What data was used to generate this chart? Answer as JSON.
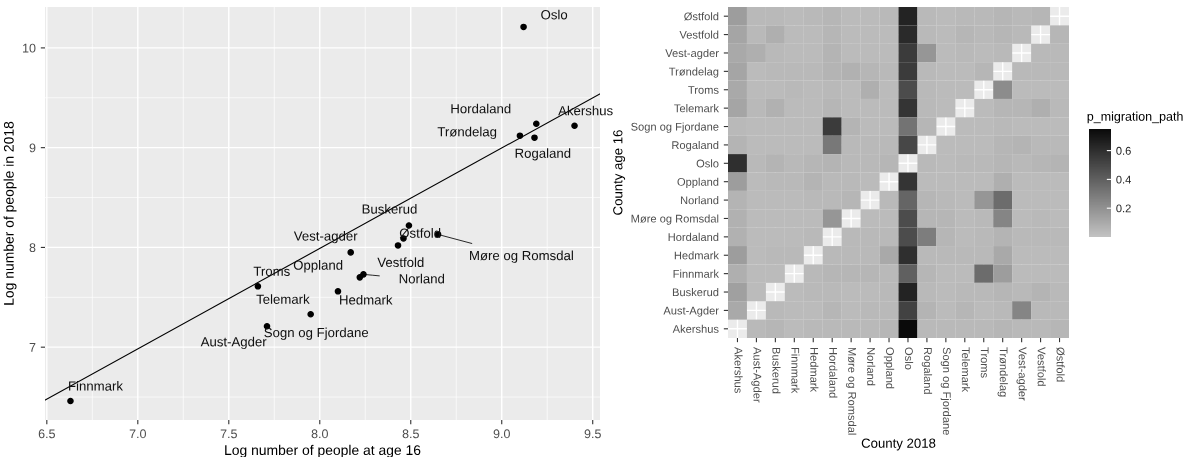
{
  "chart_data": [
    {
      "type": "scatter",
      "xlabel": "Log number of people at age 16",
      "ylabel": "Log number of people in 2018",
      "xlim": [
        6.49,
        9.54
      ],
      "ylim": [
        6.27,
        10.41
      ],
      "xticks": [
        {
          "value": 6.5,
          "label": "6.5"
        },
        {
          "value": 7.0,
          "label": "7.0"
        },
        {
          "value": 7.5,
          "label": "7.5"
        },
        {
          "value": 8.0,
          "label": "8.0"
        },
        {
          "value": 8.5,
          "label": "8.5"
        },
        {
          "value": 9.0,
          "label": "9.0"
        },
        {
          "value": 9.5,
          "label": "9.5"
        }
      ],
      "yticks": [
        7,
        8,
        9,
        10
      ],
      "grid": true,
      "series": [
        {
          "type": "scatter",
          "marker": "circle",
          "color": "#000000",
          "x": [
            9.12,
            9.4,
            9.19,
            9.1,
            9.18,
            8.49,
            8.46,
            8.43,
            8.65,
            8.17,
            8.22,
            8.24,
            8.1,
            7.66,
            7.95,
            7.71,
            6.63
          ],
          "values": [
            10.21,
            9.22,
            9.24,
            9.12,
            9.1,
            8.22,
            8.09,
            8.02,
            8.13,
            7.95,
            7.7,
            7.73,
            7.56,
            7.61,
            7.33,
            7.21,
            6.46
          ]
        },
        {
          "type": "line",
          "color": "#000000",
          "x": [
            6.49,
            9.54
          ],
          "values": [
            6.47,
            9.54
          ]
        }
      ],
      "annotations": [
        {
          "text": "Oslo",
          "x": 9.12,
          "y": 10.21
        },
        {
          "text": "Akershus",
          "x": 9.4,
          "y": 9.22
        },
        {
          "text": "Hordaland",
          "x": 9.19,
          "y": 9.24
        },
        {
          "text": "Trøndelag",
          "x": 9.1,
          "y": 9.12
        },
        {
          "text": "Rogaland",
          "x": 9.18,
          "y": 9.1
        },
        {
          "text": "Buskerud",
          "x": 8.49,
          "y": 8.22
        },
        {
          "text": "Østfold",
          "x": 8.46,
          "y": 8.09
        },
        {
          "text": "Vestfold",
          "x": 8.43,
          "y": 8.02
        },
        {
          "text": "Møre og Romsdal",
          "x": 8.65,
          "y": 8.13
        },
        {
          "text": "Vest-agder",
          "x": 8.17,
          "y": 7.95
        },
        {
          "text": "Oppland",
          "x": 8.22,
          "y": 7.7
        },
        {
          "text": "Norland",
          "x": 8.24,
          "y": 7.73
        },
        {
          "text": "Hedmark",
          "x": 8.1,
          "y": 7.56
        },
        {
          "text": "Troms",
          "x": 7.66,
          "y": 7.61
        },
        {
          "text": "Telemark",
          "x": 7.95,
          "y": 7.33
        },
        {
          "text": "Sogn og Fjordane",
          "x": 7.95,
          "y": 7.33
        },
        {
          "text": "Aust-Agder",
          "x": 7.71,
          "y": 7.21
        },
        {
          "text": "Finnmark",
          "x": 6.63,
          "y": 6.46
        }
      ]
    },
    {
      "type": "heatmap",
      "xlabel": "County 2018",
      "ylabel": "County age 16",
      "clabel": "p_migration_path",
      "categories": [
        "Akershus",
        "Aust-Agder",
        "Buskerud",
        "Finnmark",
        "Hedmark",
        "Hordaland",
        "Møre og Romsdal",
        "Norland",
        "Oppland",
        "Oslo",
        "Rogaland",
        "Sogn og Fjordane",
        "Telemark",
        "Troms",
        "Trøndelag",
        "Vest-agder",
        "Vestfold",
        "Østfold"
      ],
      "y_categories": [
        "Østfold",
        "Vestfold",
        "Vest-agder",
        "Trøndelag",
        "Troms",
        "Telemark",
        "Sogn og Fjordane",
        "Rogaland",
        "Oslo",
        "Oppland",
        "Norland",
        "Møre og Romsdal",
        "Hordaland",
        "Hedmark",
        "Finnmark",
        "Buskerud",
        "Aust-Agder",
        "Akershus"
      ],
      "clim": [
        0,
        0.75
      ],
      "cticks": [
        0.2,
        0.4,
        0.6
      ],
      "colors": [
        "#c2c2c2",
        "#0a0a0a"
      ],
      "grid": true,
      "cells": [
        [
          0.15,
          0.04,
          0.04,
          0.03,
          0.04,
          0.05,
          0.03,
          0.03,
          0.04,
          0.65,
          0.04,
          0.03,
          0.04,
          0.04,
          0.05,
          0.04,
          0.05,
          null
        ],
        [
          0.12,
          0.04,
          0.08,
          0.03,
          0.03,
          0.05,
          0.03,
          0.03,
          0.03,
          0.62,
          0.04,
          0.03,
          0.05,
          0.04,
          0.05,
          0.04,
          null,
          0.05
        ],
        [
          0.1,
          0.08,
          0.04,
          0.03,
          0.03,
          0.06,
          0.03,
          0.03,
          0.03,
          0.55,
          0.18,
          0.03,
          0.04,
          0.03,
          0.04,
          null,
          0.04,
          0.04
        ],
        [
          0.12,
          0.03,
          0.04,
          0.04,
          0.04,
          0.06,
          0.07,
          0.05,
          0.04,
          0.55,
          0.04,
          0.03,
          0.03,
          0.05,
          null,
          0.04,
          0.04,
          0.04
        ],
        [
          0.1,
          0.03,
          0.03,
          0.04,
          0.03,
          0.04,
          0.03,
          0.08,
          0.03,
          0.48,
          0.04,
          0.03,
          0.03,
          null,
          0.22,
          0.03,
          0.03,
          0.03
        ],
        [
          0.12,
          0.04,
          0.07,
          0.03,
          0.03,
          0.05,
          0.03,
          0.03,
          0.03,
          0.58,
          0.04,
          0.03,
          null,
          0.03,
          0.05,
          0.05,
          0.08,
          0.04
        ],
        [
          0.04,
          0.03,
          0.03,
          0.03,
          0.03,
          0.55,
          0.06,
          0.03,
          0.03,
          0.32,
          0.05,
          null,
          0.03,
          0.03,
          0.04,
          0.03,
          0.03,
          0.03
        ],
        [
          0.06,
          0.03,
          0.03,
          0.03,
          0.03,
          0.3,
          0.04,
          0.04,
          0.04,
          0.5,
          null,
          0.03,
          0.03,
          0.03,
          0.05,
          0.06,
          0.04,
          0.04
        ],
        [
          0.6,
          0.04,
          0.06,
          0.04,
          0.05,
          0.06,
          0.04,
          0.04,
          0.05,
          null,
          0.04,
          0.03,
          0.04,
          0.04,
          0.05,
          0.04,
          0.05,
          0.06
        ],
        [
          0.15,
          0.03,
          0.04,
          0.04,
          0.06,
          0.04,
          0.04,
          0.03,
          null,
          0.58,
          0.03,
          0.03,
          0.03,
          0.03,
          0.08,
          0.03,
          0.03,
          0.03
        ],
        [
          0.06,
          0.03,
          0.03,
          0.03,
          0.04,
          0.04,
          0.05,
          null,
          0.04,
          0.38,
          0.05,
          0.04,
          0.03,
          0.18,
          0.35,
          0.03,
          0.03,
          0.03
        ],
        [
          0.07,
          0.03,
          0.03,
          0.03,
          0.03,
          0.18,
          null,
          0.03,
          0.03,
          0.48,
          0.05,
          0.05,
          0.03,
          0.04,
          0.25,
          0.03,
          0.04,
          0.03
        ],
        [
          0.07,
          0.03,
          0.03,
          0.03,
          0.04,
          null,
          0.04,
          0.04,
          0.04,
          0.48,
          0.28,
          0.05,
          0.03,
          0.04,
          0.06,
          0.04,
          0.04,
          0.04
        ],
        [
          0.15,
          0.03,
          0.04,
          0.04,
          null,
          0.04,
          0.04,
          0.04,
          0.1,
          0.6,
          0.04,
          0.04,
          0.04,
          0.04,
          0.1,
          0.03,
          0.03,
          0.03
        ],
        [
          0.08,
          0.03,
          0.03,
          null,
          0.04,
          0.05,
          0.05,
          0.05,
          0.04,
          0.4,
          0.05,
          0.03,
          0.03,
          0.35,
          0.15,
          0.03,
          0.03,
          0.03
        ],
        [
          0.14,
          0.03,
          null,
          0.03,
          0.04,
          0.04,
          0.03,
          0.03,
          0.04,
          0.65,
          0.04,
          0.03,
          0.04,
          0.04,
          0.05,
          0.04,
          0.06,
          0.04
        ],
        [
          0.1,
          null,
          0.04,
          0.03,
          0.03,
          0.05,
          0.03,
          0.04,
          0.04,
          0.52,
          0.06,
          0.03,
          0.05,
          0.03,
          0.04,
          0.25,
          0.04,
          0.04
        ],
        [
          null,
          0.04,
          0.05,
          0.03,
          0.04,
          0.04,
          0.04,
          0.04,
          0.05,
          0.75,
          0.04,
          0.04,
          0.04,
          0.04,
          0.05,
          0.04,
          0.04,
          0.05
        ]
      ]
    }
  ]
}
